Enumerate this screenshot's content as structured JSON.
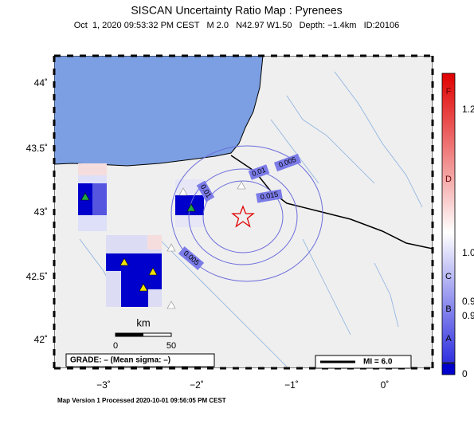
{
  "header": {
    "title": "SISCAN Uncertainty Ratio Map : Pyrenees",
    "subtitle": "Oct  1, 2020 09:53:32 PM CEST   M 2.0   N42.97 W1.50   Depth: −1.4km   ID:20106"
  },
  "map": {
    "latitude_labels": [
      "44˚",
      "43.5˚",
      "43˚",
      "42.5˚",
      "42˚"
    ],
    "longitude_labels": [
      "−3˚",
      "−2˚",
      "−1˚",
      "0˚"
    ],
    "contour_labels": [
      "0.005",
      "0.01",
      "0.015",
      "0.01",
      "0.005"
    ],
    "scale_bar": {
      "unit": "km",
      "ticks": [
        "0",
        "50"
      ]
    },
    "grade": "GRADE: – (Mean sigma: –)",
    "intensity_legend": "MI = 6.0"
  },
  "colorbar": {
    "grades": [
      "F",
      "D",
      "C",
      "B",
      "A"
    ],
    "values": [
      "1.2",
      "1.0",
      "0.9",
      "0.9",
      "0"
    ]
  },
  "footer": "Map Version 1 Processed 2020-10-01 09:56:05 PM CEST"
}
